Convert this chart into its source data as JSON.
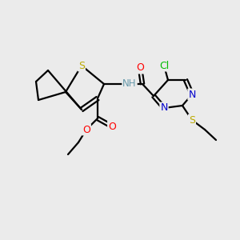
{
  "background_color": "#ebebeb",
  "bond_color": "#000000",
  "atom_colors": {
    "O": "#ff0000",
    "N": "#0000cc",
    "S": "#bbaa00",
    "Cl": "#00bb00",
    "C": "#000000",
    "H": "#6699aa"
  },
  "lw": 1.6
}
